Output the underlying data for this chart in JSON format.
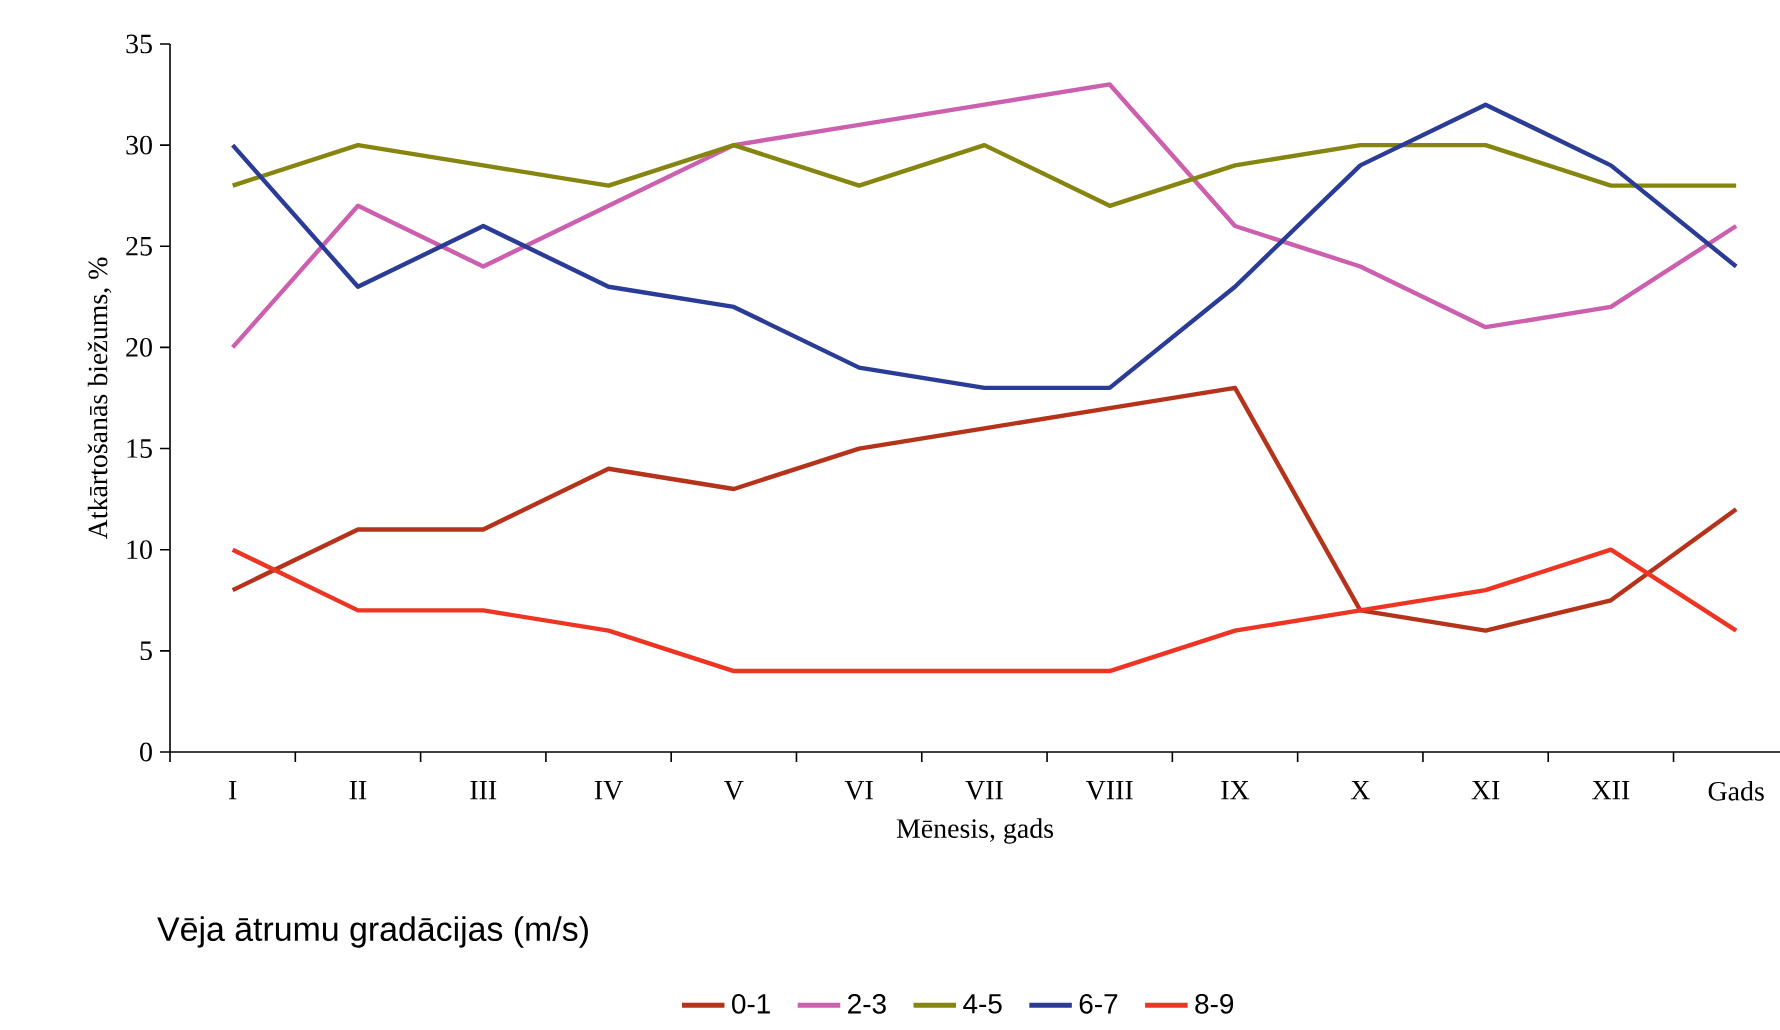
{
  "chart_data": {
    "type": "line",
    "xlabel": "Mēnesis, gads",
    "ylabel": "Atkārtošanās biežums, %",
    "legend_title": "Vēja ātrumu gradācijas (m/s)",
    "categories": [
      "I",
      "II",
      "III",
      "IV",
      "V",
      "VI",
      "VII",
      "VIII",
      "IX",
      "X",
      "XI",
      "XII",
      "Gads"
    ],
    "series": [
      {
        "name": "0-1",
        "color": "#b5331a",
        "values": [
          8,
          11,
          11,
          14,
          13,
          15,
          16,
          17,
          18,
          7,
          6,
          7.5,
          12
        ]
      },
      {
        "name": "2-3",
        "color": "#cc5fae",
        "values": [
          20,
          27,
          24,
          27,
          30,
          31,
          32,
          33,
          26,
          24,
          21,
          22,
          26
        ]
      },
      {
        "name": "4-5",
        "color": "#86850f",
        "values": [
          28,
          30,
          29,
          28,
          30,
          28,
          30,
          27,
          29,
          30,
          30,
          28,
          28
        ]
      },
      {
        "name": "6-7",
        "color": "#2b3c96",
        "values": [
          30,
          23,
          26,
          23,
          22,
          19,
          18,
          18,
          23,
          29,
          32,
          29,
          24
        ]
      },
      {
        "name": "8-9",
        "color": "#ee3523",
        "values": [
          10,
          7,
          7,
          6,
          4,
          4,
          4,
          4,
          6,
          7,
          8,
          10,
          6
        ]
      }
    ],
    "ylim": [
      0,
      35
    ],
    "yticks": [
      0,
      5,
      10,
      15,
      20,
      25,
      30,
      35
    ],
    "grid": false,
    "legend": "bottom",
    "marker": "none",
    "line_style": "solid"
  }
}
